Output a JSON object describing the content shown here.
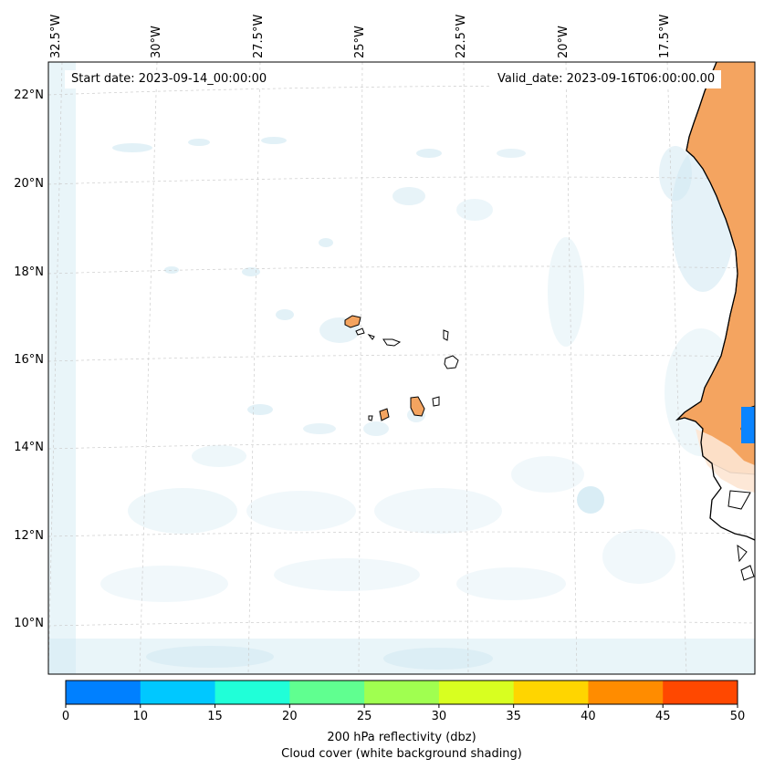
{
  "map": {
    "start_date_label": "Start date: 2023-09-14_00:00:00",
    "valid_date_label": "Valid_date: 2023-09-16T06:00:00.00",
    "lon_labels": [
      "32.5°W",
      "30°W",
      "27.5°W",
      "25°W",
      "22.5°W",
      "20°W",
      "17.5°W"
    ],
    "lat_labels": [
      "22°N",
      "20°N",
      "18°N",
      "16°N",
      "14°N",
      "12°N",
      "10°N"
    ],
    "colors": {
      "cloud": "#cfe8f2",
      "land_fill": "#f4a460",
      "coast": "#000000",
      "grid": "#cccccc",
      "echo_blue": "#0a84ff"
    }
  },
  "colorbar": {
    "ticks": [
      "0",
      "10",
      "15",
      "20",
      "25",
      "30",
      "35",
      "40",
      "45",
      "50"
    ],
    "colors": [
      "#0080ff",
      "#00c8ff",
      "#20ffd8",
      "#60ff90",
      "#a0ff50",
      "#d8ff20",
      "#ffd500",
      "#ff8c00",
      "#ff4800"
    ],
    "label_line1": "200 hPa reflectivity (dbz)",
    "label_line2": "Cloud cover (white background shading)"
  }
}
